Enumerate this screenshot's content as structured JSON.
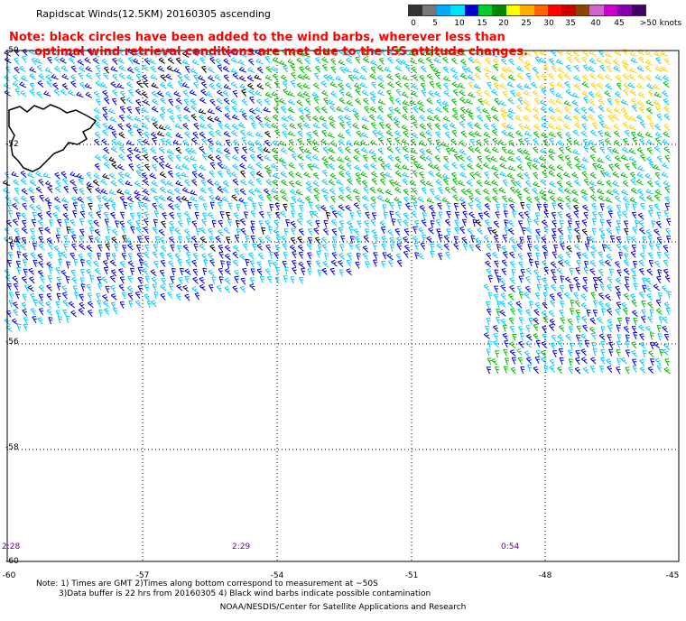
{
  "title": "Rapidscat Winds(12.5KM) 20160305 ascending",
  "legend": {
    "labels": [
      "0",
      "5",
      "10",
      "15",
      "20",
      "25",
      "30",
      "35",
      "40",
      "45",
      ">50 knots"
    ],
    "colors": [
      "#333333",
      "#777777",
      "#00aaff",
      "#00e0ff",
      "#0000cc",
      "#00cc33",
      "#008800",
      "#ffff00",
      "#ffb000",
      "#ff6600",
      "#ff0000",
      "#cc0000",
      "#884400",
      "#cc66cc",
      "#cc00cc",
      "#8800aa",
      "#440066"
    ]
  },
  "note": {
    "line1": "Note: black circles have been added to the wind barbs, wherever less than",
    "line2": "optimal wind retrieval conditions are met due to the ISS attitude changes."
  },
  "axes": {
    "y_labels": [
      "-50",
      "-52",
      "-54",
      "-56",
      "-58",
      "-60"
    ],
    "x_labels": [
      "-60",
      "-57",
      "-54",
      "-51",
      "-48",
      "-45"
    ]
  },
  "times": [
    "2:28",
    "2:29",
    "0:54"
  ],
  "footnote": {
    "line1": "Note: 1) Times are GMT 2)Times along bottom correspond to measurement at ~50S",
    "line2": "3)Data buffer is 22 hrs from 20160305 4) Black wind barbs indicate possible contamination"
  },
  "credit": "NOAA/NESDIS/Center for Satellite Applications and Research",
  "map_colors": {
    "land": "#ffffff",
    "coast": "#000000",
    "barb_cyan": "#00c8ff",
    "barb_blue": "#0000dd",
    "barb_green": "#00bb00",
    "barb_yellow": "#ffd000",
    "barb_black": "#000000"
  }
}
